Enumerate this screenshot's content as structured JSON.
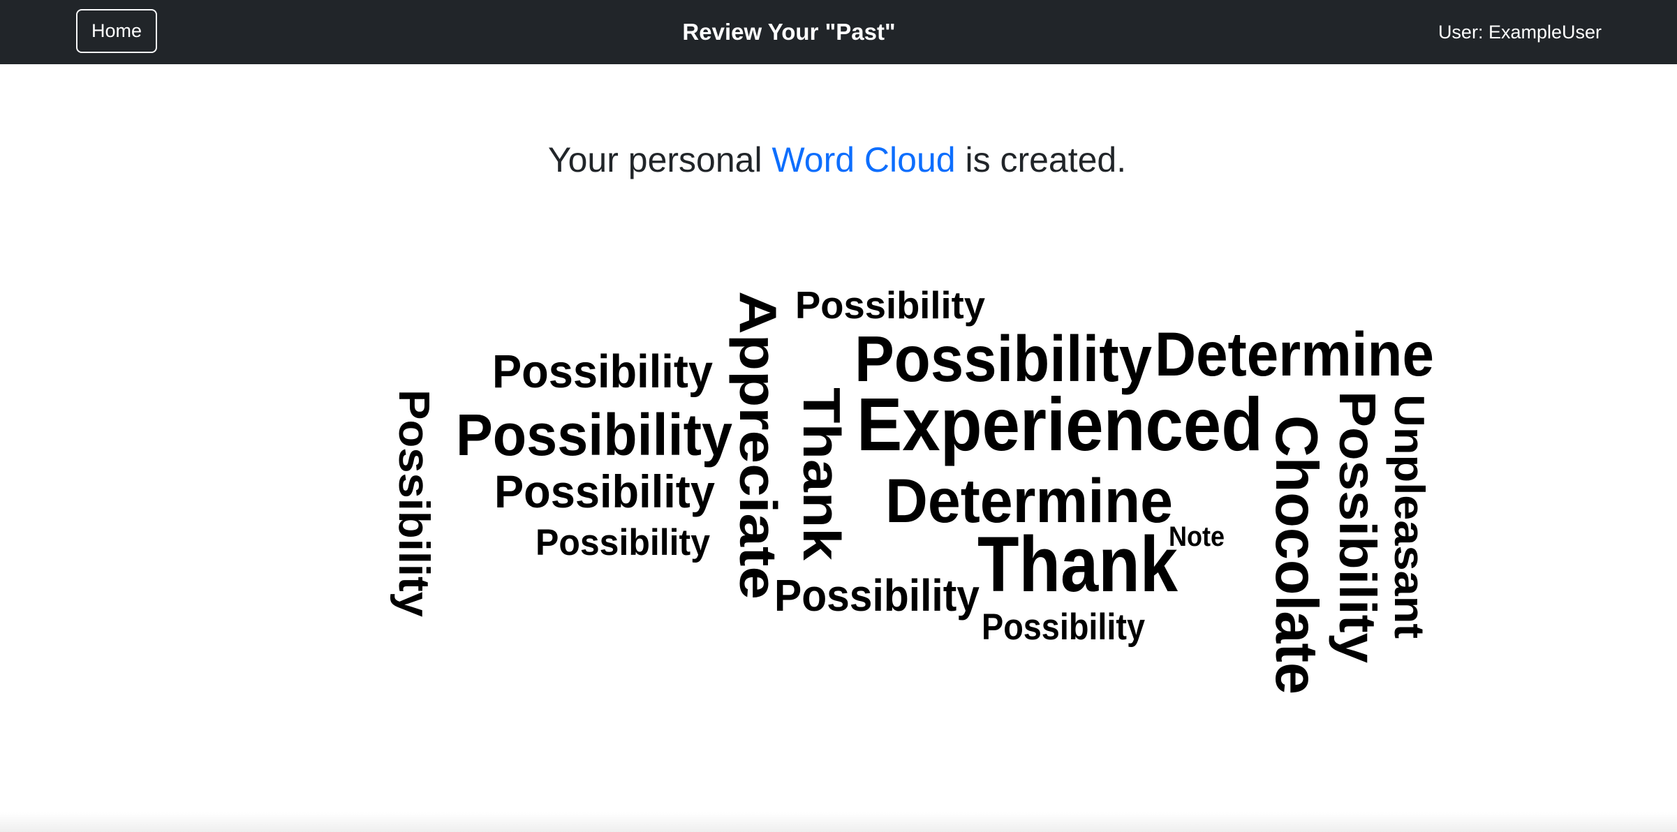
{
  "navbar": {
    "home_label": "Home",
    "title": "Review Your \"Past\"",
    "user_label": "User: ExampleUser"
  },
  "headline": {
    "prefix": "Your personal ",
    "accent": "Word Cloud",
    "suffix": " is created."
  },
  "colors": {
    "navbar_bg": "#212529",
    "accent": "#0d6efd",
    "word": "#000000"
  },
  "word_cloud": {
    "words": [
      {
        "text": "Possibility",
        "orientation": "vertical"
      },
      {
        "text": "Possibility",
        "orientation": "horizontal"
      },
      {
        "text": "Possibility",
        "orientation": "horizontal"
      },
      {
        "text": "Possibility",
        "orientation": "horizontal"
      },
      {
        "text": "Possibility",
        "orientation": "horizontal"
      },
      {
        "text": "Appreciate",
        "orientation": "vertical"
      },
      {
        "text": "Possibility",
        "orientation": "horizontal"
      },
      {
        "text": "Thank",
        "orientation": "vertical"
      },
      {
        "text": "Possibility",
        "orientation": "horizontal"
      },
      {
        "text": "Experienced",
        "orientation": "horizontal"
      },
      {
        "text": "Determine",
        "orientation": "horizontal"
      },
      {
        "text": "Determine",
        "orientation": "horizontal"
      },
      {
        "text": "Thank",
        "orientation": "horizontal"
      },
      {
        "text": "Note",
        "orientation": "horizontal"
      },
      {
        "text": "Possibility",
        "orientation": "horizontal"
      },
      {
        "text": "Possibility",
        "orientation": "horizontal"
      },
      {
        "text": "Chocolate",
        "orientation": "vertical"
      },
      {
        "text": "Possibility",
        "orientation": "vertical"
      },
      {
        "text": "Unpleasant",
        "orientation": "vertical"
      }
    ]
  }
}
